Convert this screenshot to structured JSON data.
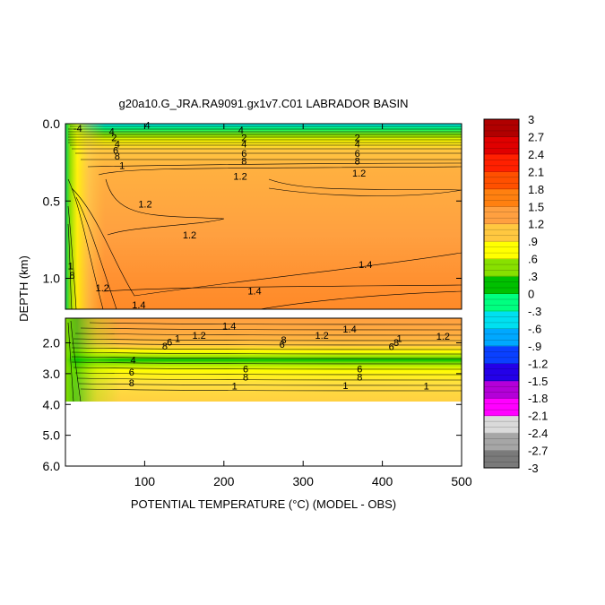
{
  "chart_data": {
    "type": "heatmap",
    "title": "g20a10.G_JRA.RA9091.gx1v7.C01 LABRADOR BASIN",
    "xlabel": "POTENTIAL TEMPERATURE (°C) (MODEL - OBS)",
    "ylabel": "DEPTH (km)",
    "x_range": [
      0,
      500
    ],
    "x_ticks": [
      100,
      200,
      300,
      400,
      500
    ],
    "x_tick_labels": [
      "100",
      "200",
      "300",
      "400",
      "500"
    ],
    "upper_panel": {
      "y_range": [
        0.0,
        1.2
      ],
      "y_ticks": [
        0.0,
        0.5,
        1.0
      ],
      "y_tick_labels": [
        "0.0",
        "0.5",
        "1.0"
      ]
    },
    "lower_panel": {
      "y_range": [
        1.2,
        6.0
      ],
      "y_ticks": [
        2.0,
        3.0,
        4.0,
        5.0,
        6.0
      ],
      "y_tick_labels": [
        "2.0",
        "3.0",
        "4.0",
        "5.0",
        "6.0"
      ],
      "data_bottom_depth": 3.9
    },
    "colorbar": {
      "min": -3,
      "max": 3,
      "labels": [
        "3",
        "2.7",
        "2.4",
        "2.1",
        "1.8",
        "1.5",
        "1.2",
        ".9",
        ".6",
        ".3",
        "0",
        "-.3",
        "-.6",
        "-.9",
        "-1.2",
        "-1.5",
        "-1.8",
        "-2.1",
        "-2.4",
        "-2.7",
        "-3"
      ],
      "label_values": [
        3,
        2.7,
        2.4,
        2.1,
        1.8,
        1.5,
        1.2,
        0.9,
        0.6,
        0.3,
        0,
        -0.3,
        -0.6,
        -0.9,
        -1.2,
        -1.5,
        -1.8,
        -2.1,
        -2.4,
        -2.7,
        -3
      ],
      "colors": [
        "#7a7a7a",
        "#a6a6a6",
        "#dadada",
        "#ff00ff",
        "#b400d8",
        "#2400e8",
        "#0a40ff",
        "#00a8ff",
        "#00e0f0",
        "#00ff80",
        "#00c000",
        "#88e000",
        "#ffff00",
        "#ffc840",
        "#ffa040",
        "#ff8010",
        "#ff5000",
        "#ff2000",
        "#e00000",
        "#b00000"
      ]
    },
    "contour_labels": {
      "upper": [
        {
          "x": 10,
          "y": 0.03,
          "text": "-4"
        },
        {
          "x": 100,
          "y": 0.01,
          "text": "4"
        },
        {
          "x": 55,
          "y": 0.05,
          "text": "4"
        },
        {
          "x": 58,
          "y": 0.09,
          "text": "2"
        },
        {
          "x": 62,
          "y": 0.13,
          "text": "4"
        },
        {
          "x": 60,
          "y": 0.17,
          "text": "6"
        },
        {
          "x": 62,
          "y": 0.21,
          "text": "8"
        },
        {
          "x": 68,
          "y": 0.27,
          "text": "1"
        },
        {
          "x": 218,
          "y": 0.04,
          "text": "4"
        },
        {
          "x": 222,
          "y": 0.09,
          "text": "2"
        },
        {
          "x": 222,
          "y": 0.13,
          "text": "4"
        },
        {
          "x": 222,
          "y": 0.19,
          "text": "6"
        },
        {
          "x": 222,
          "y": 0.24,
          "text": "8"
        },
        {
          "x": 365,
          "y": 0.09,
          "text": "2"
        },
        {
          "x": 365,
          "y": 0.13,
          "text": "4"
        },
        {
          "x": 365,
          "y": 0.19,
          "text": "6"
        },
        {
          "x": 365,
          "y": 0.24,
          "text": "8"
        },
        {
          "x": 212,
          "y": 0.34,
          "text": "1.2"
        },
        {
          "x": 362,
          "y": 0.32,
          "text": "1.2"
        },
        {
          "x": 92,
          "y": 0.52,
          "text": "1.2"
        },
        {
          "x": 148,
          "y": 0.72,
          "text": "1.2"
        },
        {
          "x": 38,
          "y": 1.06,
          "text": "1.2"
        },
        {
          "x": 84,
          "y": 1.17,
          "text": "1.4"
        },
        {
          "x": 230,
          "y": 1.08,
          "text": "1.4"
        },
        {
          "x": 370,
          "y": 0.91,
          "text": "1.4"
        },
        {
          "x": 3,
          "y": 0.92,
          "text": "1"
        },
        {
          "x": 5,
          "y": 0.98,
          "text": "8"
        }
      ],
      "lower": [
        {
          "x": 198,
          "y": 1.45,
          "text": "1.4"
        },
        {
          "x": 350,
          "y": 1.55,
          "text": "1.4"
        },
        {
          "x": 160,
          "y": 1.75,
          "text": "1.2"
        },
        {
          "x": 315,
          "y": 1.75,
          "text": "1.2"
        },
        {
          "x": 468,
          "y": 1.78,
          "text": "1.2"
        },
        {
          "x": 138,
          "y": 1.85,
          "text": "1"
        },
        {
          "x": 122,
          "y": 2.1,
          "text": "8"
        },
        {
          "x": 128,
          "y": 1.97,
          "text": "6"
        },
        {
          "x": 272,
          "y": 1.9,
          "text": "8"
        },
        {
          "x": 270,
          "y": 2.05,
          "text": "6"
        },
        {
          "x": 418,
          "y": 1.85,
          "text": "1"
        },
        {
          "x": 414,
          "y": 1.98,
          "text": "8"
        },
        {
          "x": 408,
          "y": 2.12,
          "text": "6"
        },
        {
          "x": 82,
          "y": 2.55,
          "text": "4"
        },
        {
          "x": 80,
          "y": 2.95,
          "text": "6"
        },
        {
          "x": 80,
          "y": 3.3,
          "text": "8"
        },
        {
          "x": 224,
          "y": 2.85,
          "text": "6"
        },
        {
          "x": 224,
          "y": 3.1,
          "text": "8"
        },
        {
          "x": 210,
          "y": 3.4,
          "text": "1"
        },
        {
          "x": 368,
          "y": 2.85,
          "text": "6"
        },
        {
          "x": 368,
          "y": 3.1,
          "text": "8"
        },
        {
          "x": 350,
          "y": 3.38,
          "text": "1"
        },
        {
          "x": 452,
          "y": 3.4,
          "text": "1"
        }
      ]
    }
  }
}
